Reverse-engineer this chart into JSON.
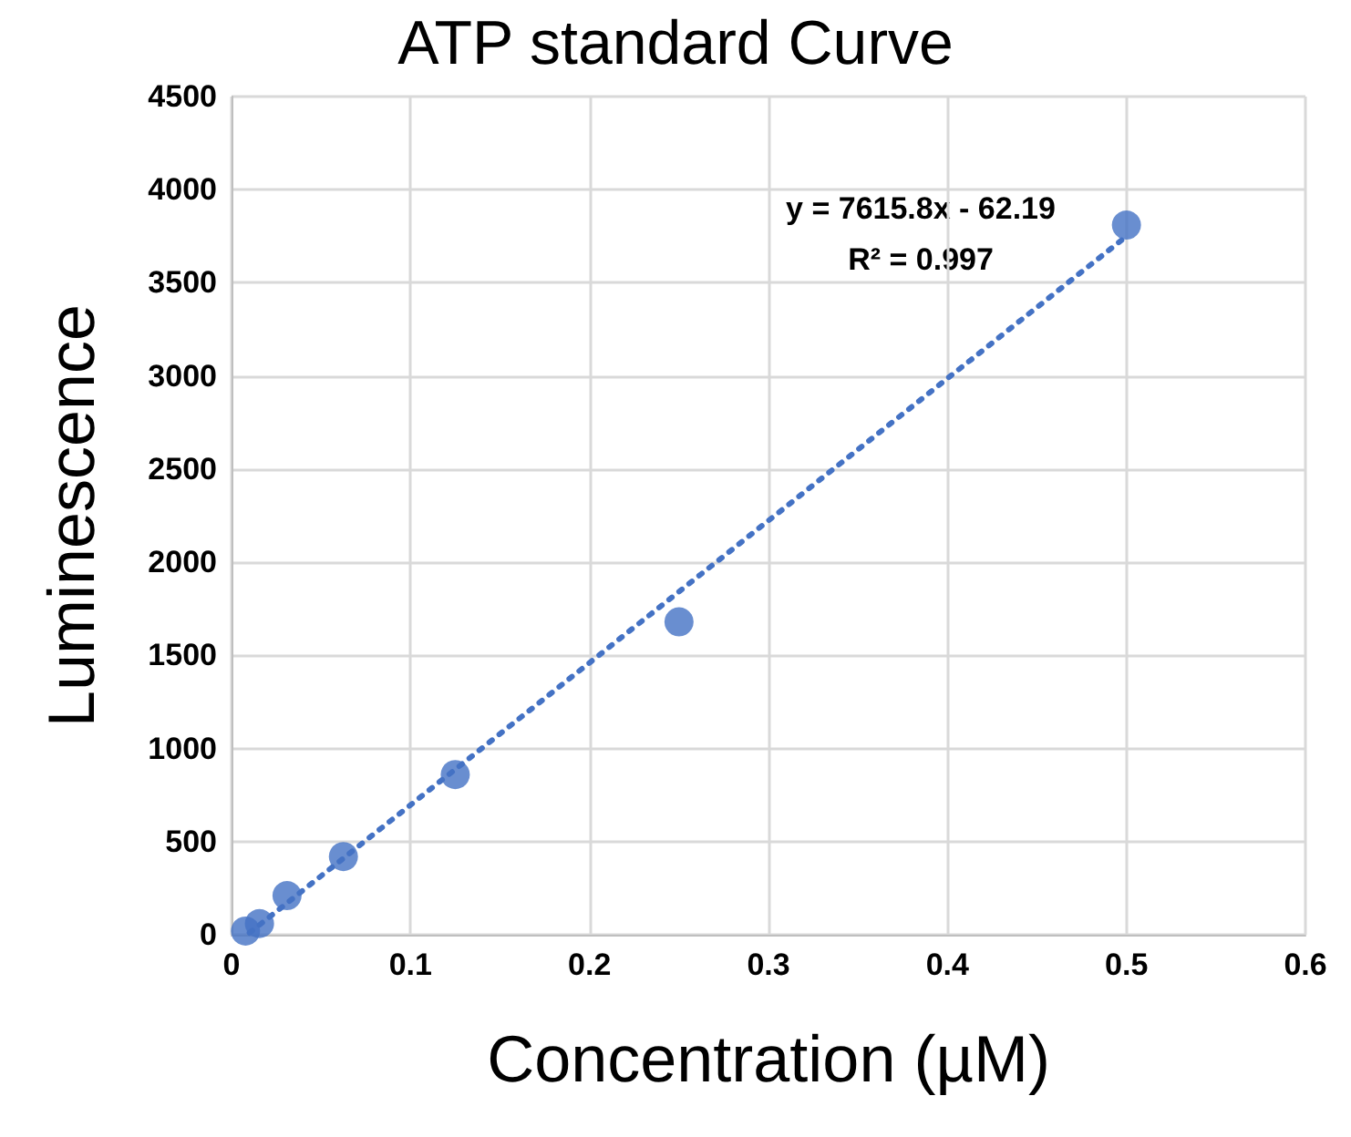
{
  "chart_data": {
    "type": "scatter",
    "title": "ATP standard Curve",
    "xlabel": "Concentration (µM)",
    "ylabel": "Luminescence",
    "x": [
      0.0078,
      0.0156,
      0.031,
      0.0625,
      0.125,
      0.25,
      0.5
    ],
    "series": [
      {
        "color": "#4472c4",
        "marker": "circle",
        "values": [
          20,
          60,
          210,
          420,
          860,
          1680,
          3810
        ]
      },
      {
        "type": "line",
        "color": "#4472c4",
        "line_style": "dotted",
        "marker": "none",
        "x": [
          0.01,
          0.5
        ],
        "values": [
          10,
          3750
        ]
      }
    ],
    "annotations": [
      "y = 7615.8x - 62.19",
      "R² = 0.997"
    ],
    "xlim": [
      0,
      0.6
    ],
    "xticks": [
      0,
      0.1,
      0.2,
      0.3,
      0.4,
      0.5,
      0.6
    ],
    "ylim": [
      0,
      4500
    ],
    "yticks": [
      0,
      500,
      1000,
      1500,
      2000,
      2500,
      3000,
      3500,
      4000,
      4500
    ],
    "grid": true
  }
}
